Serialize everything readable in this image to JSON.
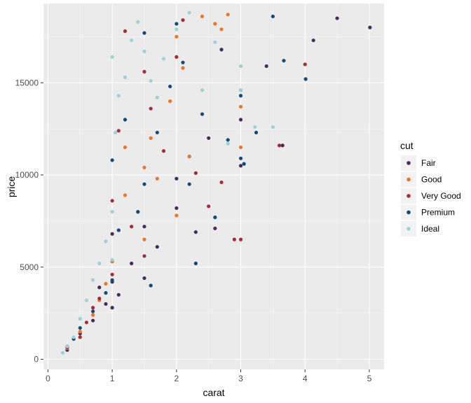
{
  "chart_data": {
    "type": "scatter",
    "title": "",
    "xlabel": "carat",
    "ylabel": "price",
    "xlim": [
      -0.07,
      5.23
    ],
    "ylim": [
      -550,
      19300
    ],
    "x_ticks": [
      0,
      1,
      2,
      3,
      4,
      5
    ],
    "x_tick_labels": [
      "0",
      "1",
      "2",
      "3",
      "4",
      "5"
    ],
    "y_ticks": [
      0,
      5000,
      10000,
      15000
    ],
    "y_tick_labels": [
      "0",
      "5000",
      "10000",
      "15000"
    ],
    "grid": true,
    "legend": {
      "title": "cut",
      "position": "right",
      "entries": [
        {
          "name": "Fair",
          "color": "#4a2a5e"
        },
        {
          "name": "Good",
          "color": "#e8762c"
        },
        {
          "name": "Very Good",
          "color": "#a52a3a"
        },
        {
          "name": "Premium",
          "color": "#124a7c"
        },
        {
          "name": "Ideal",
          "color": "#9ad2d8"
        }
      ]
    },
    "series": [
      {
        "name": "Fair",
        "color": "#4a2a5e",
        "x": [
          0.3,
          0.5,
          0.7,
          0.9,
          1.0,
          1.0,
          1.1,
          1.3,
          1.5,
          1.5,
          1.7,
          2.0,
          2.0,
          2.2,
          2.3,
          2.5,
          2.6,
          3.0,
          3.0,
          3.4,
          3.65,
          4.13,
          4.5,
          5.01,
          2.7,
          1.0,
          0.8
        ],
        "y": [
          500,
          1400,
          2100,
          3000,
          2800,
          4200,
          3500,
          5200,
          4400,
          7200,
          6100,
          8200,
          9800,
          11000,
          6900,
          12000,
          7100,
          10500,
          13000,
          15900,
          11600,
          17300,
          18500,
          18000,
          16800,
          6800,
          3900
        ]
      },
      {
        "name": "Good",
        "color": "#e8762c",
        "x": [
          0.3,
          0.5,
          0.7,
          0.9,
          1.0,
          1.1,
          1.2,
          1.5,
          1.5,
          1.6,
          1.7,
          1.9,
          2.0,
          2.1,
          2.2,
          2.4,
          2.6,
          2.7,
          2.8,
          3.0,
          3.0,
          2.0,
          1.2,
          0.8
        ],
        "y": [
          600,
          1500,
          2400,
          4100,
          5300,
          7000,
          8900,
          6500,
          10400,
          12000,
          9800,
          14000,
          17500,
          15800,
          11000,
          18600,
          18200,
          17900,
          18700,
          11500,
          13700,
          7800,
          11500,
          3200
        ]
      },
      {
        "name": "Very Good",
        "color": "#a52a3a",
        "x": [
          0.3,
          0.5,
          0.6,
          0.8,
          1.0,
          1.0,
          1.1,
          1.3,
          1.5,
          1.5,
          1.6,
          1.8,
          2.0,
          2.1,
          2.3,
          2.5,
          2.7,
          2.9,
          3.0,
          3.0,
          4.0,
          3.6,
          1.2,
          0.7
        ],
        "y": [
          650,
          1200,
          2000,
          3300,
          4600,
          8600,
          12400,
          7200,
          5600,
          15600,
          13600,
          11300,
          16400,
          18400,
          10100,
          8300,
          9600,
          6500,
          6500,
          14600,
          16000,
          11600,
          17800,
          2800
        ]
      },
      {
        "name": "Premium",
        "color": "#124a7c",
        "x": [
          0.3,
          0.4,
          0.5,
          0.7,
          0.9,
          1.0,
          1.0,
          1.1,
          1.2,
          1.4,
          1.5,
          1.5,
          1.7,
          1.9,
          2.0,
          2.1,
          2.2,
          2.4,
          2.6,
          2.8,
          3.0,
          3.0,
          3.05,
          3.24,
          3.5,
          3.67,
          4.01,
          2.3,
          1.6
        ],
        "y": [
          700,
          1100,
          1700,
          2600,
          3600,
          4300,
          10800,
          7000,
          13000,
          8000,
          9500,
          17700,
          12300,
          14800,
          18200,
          16100,
          9500,
          13300,
          7700,
          11900,
          14300,
          10900,
          10600,
          12300,
          18600,
          16200,
          15200,
          5200,
          4000
        ]
      },
      {
        "name": "Ideal",
        "color": "#9ad2d8",
        "x": [
          0.23,
          0.3,
          0.4,
          0.5,
          0.6,
          0.7,
          0.8,
          0.9,
          1.0,
          1.0,
          1.05,
          1.1,
          1.2,
          1.3,
          1.4,
          1.5,
          1.6,
          1.7,
          1.8,
          2.0,
          2.2,
          2.4,
          2.6,
          2.8,
          3.0,
          3.0,
          3.22,
          3.5,
          1.0
        ],
        "y": [
          350,
          700,
          1200,
          2200,
          3200,
          4300,
          5200,
          6400,
          8000,
          16400,
          12300,
          14300,
          15300,
          17300,
          18300,
          16700,
          15100,
          14200,
          16300,
          17900,
          18800,
          14600,
          17200,
          11700,
          15900,
          14600,
          12600,
          12600,
          5400
        ]
      }
    ]
  }
}
